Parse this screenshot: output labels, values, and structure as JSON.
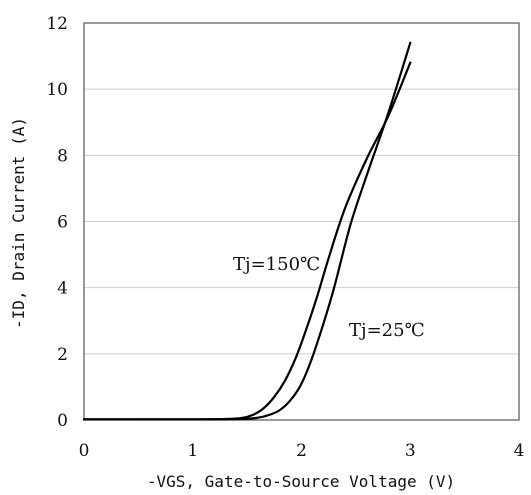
{
  "chart_data": {
    "type": "line",
    "title": "",
    "xlabel": "-VGS, Gate-to-Source Voltage (V)",
    "ylabel": "-ID, Drain Current (A)",
    "xlim": [
      0,
      4
    ],
    "ylim": [
      0,
      12
    ],
    "xticks": [
      0,
      1,
      2,
      3,
      4
    ],
    "yticks": [
      0,
      2,
      4,
      6,
      8,
      10,
      12
    ],
    "grid": "horizontal",
    "legend": "none",
    "series": [
      {
        "name": "Tj=150℃",
        "x": [
          0,
          1.0,
          1.3,
          1.45,
          1.55,
          1.65,
          1.75,
          1.85,
          1.95,
          2.05,
          2.15,
          2.25,
          2.4,
          2.6,
          2.8,
          3.0
        ],
        "y": [
          0.02,
          0.02,
          0.03,
          0.06,
          0.15,
          0.35,
          0.7,
          1.2,
          1.9,
          2.8,
          3.8,
          4.9,
          6.4,
          7.9,
          9.2,
          10.8
        ]
      },
      {
        "name": "Tj=25℃",
        "x": [
          0,
          1.0,
          1.45,
          1.6,
          1.7,
          1.8,
          1.9,
          2.0,
          2.1,
          2.2,
          2.3,
          2.45,
          2.6,
          2.8,
          3.0
        ],
        "y": [
          0.02,
          0.02,
          0.03,
          0.07,
          0.15,
          0.3,
          0.6,
          1.1,
          1.9,
          2.9,
          4.0,
          5.9,
          7.4,
          9.3,
          11.4
        ]
      }
    ],
    "annotations": [
      {
        "text": "Tj=150℃",
        "target": "Tj=150℃"
      },
      {
        "text": "Tj=25℃",
        "target": "Tj=25℃"
      }
    ]
  }
}
